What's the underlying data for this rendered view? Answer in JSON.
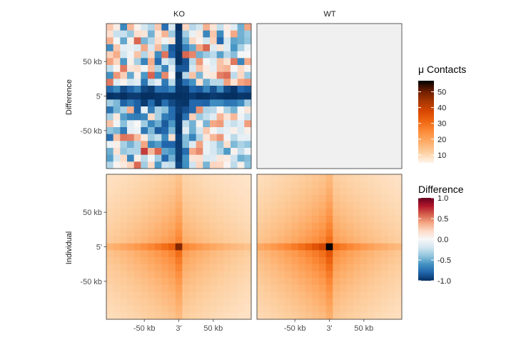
{
  "chart_data": {
    "type": "heatmap",
    "columns": [
      "KO",
      "WT"
    ],
    "rows": [
      "Difference",
      "Individual"
    ],
    "x_ticks": [
      "-50 kb",
      "3'",
      "50 kb"
    ],
    "y_ticks": [
      "50 kb",
      "5'",
      "-50 kb"
    ],
    "grid_size": 21,
    "anchor_bin": 10,
    "difference_matrix": [
      [
        0.27,
        0.08,
        -0.65,
        0.33,
        0.04,
        -0.19,
        -0.3,
        0.27,
        -0.76,
        -0.17,
        -1.0,
        0.22,
        -0.28,
        -0.19,
        0.36,
        0.14,
        -0.24,
        0.07,
        -0.12,
        -0.49,
        0.4
      ],
      [
        0.17,
        -0.23,
        -0.23,
        -0.38,
        0.17,
        0.13,
        -0.48,
        0.12,
        0.35,
        -0.36,
        -0.95,
        -0.35,
        -0.07,
        0.1,
        -0.66,
        0.28,
        -0.64,
        0.06,
        0.39,
        -0.48,
        -0.37
      ],
      [
        0.36,
        -0.02,
        -0.52,
        0.06,
        0.58,
        -0.46,
        -0.29,
        0.19,
        -0.05,
        0.12,
        -0.95,
        -0.5,
        0.21,
        0.05,
        -0.19,
        0.24,
        -0.79,
        -0.17,
        -0.53,
        -0.49,
        -0.4
      ],
      [
        -0.63,
        0.27,
        -0.1,
        -0.08,
        -0.14,
        0.39,
        -0.18,
        0.32,
        -0.44,
        -0.84,
        -0.96,
        -0.69,
        -0.52,
        0.4,
        0.58,
        -0.13,
        0.13,
        -0.13,
        -0.59,
        -0.33,
        -0.07
      ],
      [
        0.24,
        0.37,
        -0.18,
        -0.03,
        0.29,
        -0.3,
        0.21,
        -0.63,
        0.54,
        -0.8,
        -0.99,
        0.58,
        0.49,
        -0.48,
        -0.37,
        -0.27,
        -0.55,
        -0.28,
        -0.43,
        -0.02,
        -0.01
      ],
      [
        0.41,
        0.22,
        -0.58,
        0.06,
        -0.34,
        -0.67,
        0.37,
        -0.78,
        -0.18,
        -0.28,
        -0.99,
        -0.87,
        -0.27,
        0.44,
        -0.02,
        -0.14,
        0.29,
        0.15,
        0.53,
        -0.66,
        0.38
      ],
      [
        -0.24,
        0.02,
        0.53,
        0.13,
        0.18,
        -0.03,
        0.3,
        -0.32,
        -0.66,
        -0.11,
        -0.86,
        -0.85,
        -0.19,
        0.29,
        0.09,
        -0.1,
        0.3,
        0.34,
        0.01,
        0.19,
        0.03
      ],
      [
        -0.61,
        0.44,
        0.25,
        -0.52,
        0.06,
        -0.58,
        0.59,
        -0.63,
        0.48,
        -0.01,
        -1.0,
        -0.28,
        0.29,
        -0.46,
        0.08,
        0.12,
        0.51,
        0.56,
        -0.26,
        0.21,
        -0.37
      ],
      [
        0.53,
        -0.13,
        0.04,
        -0.19,
        -0.12,
        -0.73,
        -0.25,
        -0.1,
        -0.71,
        -0.27,
        -0.96,
        -0.76,
        -0.6,
        0.16,
        -0.5,
        -0.28,
        -0.28,
        0.41,
        0.16,
        0.4,
        0.45
      ],
      [
        -0.77,
        -0.65,
        -0.9,
        -0.81,
        -0.69,
        -0.91,
        -0.96,
        -0.75,
        -0.77,
        -0.67,
        -0.98,
        -0.97,
        -0.8,
        -0.84,
        -0.67,
        -0.88,
        -0.63,
        -0.9,
        -0.98,
        -0.8,
        -0.85
      ],
      [
        -0.99,
        -0.97,
        -1.0,
        -0.96,
        -0.96,
        -1.0,
        -1.0,
        -0.98,
        -0.97,
        -0.99,
        -1.0,
        -0.99,
        -0.96,
        -1.0,
        -0.99,
        -0.96,
        -0.98,
        -1.0,
        -1.0,
        -0.97,
        -0.98
      ],
      [
        -0.35,
        -0.45,
        -0.82,
        -0.71,
        -0.82,
        -0.96,
        -0.78,
        -0.97,
        -0.76,
        -0.9,
        -0.97,
        -0.98,
        -0.79,
        -0.79,
        -0.81,
        -0.63,
        -0.64,
        -0.73,
        -0.72,
        -0.63,
        -0.35
      ],
      [
        -0.73,
        -0.47,
        -0.32,
        0.36,
        -0.82,
        -0.09,
        -0.7,
        -0.33,
        -0.42,
        -0.77,
        -0.95,
        -0.88,
        -0.79,
        0.46,
        -0.31,
        -0.28,
        0.02,
        -0.32,
        -0.47,
        -0.02,
        0.13
      ],
      [
        -0.33,
        0.11,
        -0.56,
        -0.68,
        -0.7,
        -0.66,
        0.2,
        -0.33,
        -0.7,
        -0.77,
        -0.98,
        -0.75,
        0.25,
        -0.37,
        -0.24,
        -0.12,
        0.34,
        0.15,
        0.33,
        -0.04,
        -0.23
      ],
      [
        0.29,
        -0.03,
        -0.42,
        -0.11,
        0.0,
        -0.36,
        -0.66,
        -0.5,
        -0.84,
        -0.58,
        -0.98,
        -0.25,
        -0.48,
        0.04,
        -0.47,
        0.39,
        0.43,
        -0.13,
        -0.23,
        -0.12,
        0.42
      ],
      [
        -0.4,
        -0.46,
        -0.71,
        -0.1,
        -0.06,
        -0.72,
        -0.45,
        -0.84,
        -0.79,
        -0.46,
        -0.99,
        -0.12,
        -0.49,
        -0.18,
        0.27,
        0.02,
        -0.15,
        -0.08,
        0.06,
        -0.14,
        0.06
      ],
      [
        -0.77,
        0.29,
        0.54,
        0.52,
        0.32,
        0.09,
        -0.36,
        -0.24,
        -0.64,
        0.17,
        -0.94,
        -0.43,
        -0.67,
        -0.31,
        0.12,
        0.33,
        0.44,
        -0.03,
        -0.27,
        -0.09,
        -0.09
      ],
      [
        -0.06,
        0.06,
        -0.33,
        -0.48,
        -0.31,
        0.4,
        -0.66,
        -0.56,
        -0.8,
        -0.8,
        -0.96,
        -0.45,
        -0.13,
        0.41,
        -0.08,
        -0.18,
        -0.38,
        0.17,
        -0.45,
        -0.32,
        -0.39
      ],
      [
        -0.49,
        0.15,
        -0.38,
        -0.31,
        -0.31,
        0.7,
        0.33,
        0.58,
        -0.53,
        -0.59,
        -0.95,
        -0.77,
        0.38,
        0.48,
        -0.07,
        -0.18,
        -0.32,
        -0.57,
        0.04,
        -0.25,
        -0.04
      ],
      [
        -0.55,
        -0.17,
        0.2,
        -0.67,
        0.06,
        -0.27,
        -0.03,
        -0.35,
        -0.79,
        -0.48,
        -0.96,
        -0.6,
        0.14,
        0.16,
        -0.16,
        -0.13,
        0.12,
        0.09,
        -0.21,
        -0.49,
        -0.43
      ],
      [
        -0.3,
        0.03,
        0.1,
        0.22,
        0.57,
        -0.35,
        0.2,
        -0.58,
        -0.21,
        -0.25,
        -0.92,
        -0.62,
        -0.2,
        0.22,
        -0.47,
        0.22,
        0.21,
        0.03,
        -0.26,
        0.05,
        -0.4
      ]
    ],
    "individual_peak": {
      "KO": 48,
      "WT": 57
    },
    "individual_background": 6,
    "legends": [
      {
        "title": "μ Contacts",
        "ticks": [
          10,
          20,
          30,
          40,
          50
        ],
        "limits": [
          5,
          57
        ],
        "colors": [
          "#fff5eb",
          "#fdd0a2",
          "#fdae6b",
          "#fd8d3c",
          "#f16913",
          "#d94801",
          "#a63603",
          "#6b1d00",
          "#000000"
        ]
      },
      {
        "title": "Difference",
        "ticks": [
          1.0,
          0.5,
          0.0,
          -0.5,
          -1.0
        ],
        "tick_labels": [
          "1.0",
          "0.5",
          "0.0",
          "-0.5",
          "-1.0"
        ],
        "limits": [
          -1,
          1
        ],
        "colors": [
          "#053061",
          "#2166ac",
          "#4393c3",
          "#92c5de",
          "#d1e5f0",
          "#f7f7f7",
          "#fddbc7",
          "#f4a582",
          "#d6604d",
          "#b2182b",
          "#67001f"
        ]
      }
    ]
  },
  "empty_panel_color": "#f0f0f0",
  "panel_border_color": "#333333"
}
